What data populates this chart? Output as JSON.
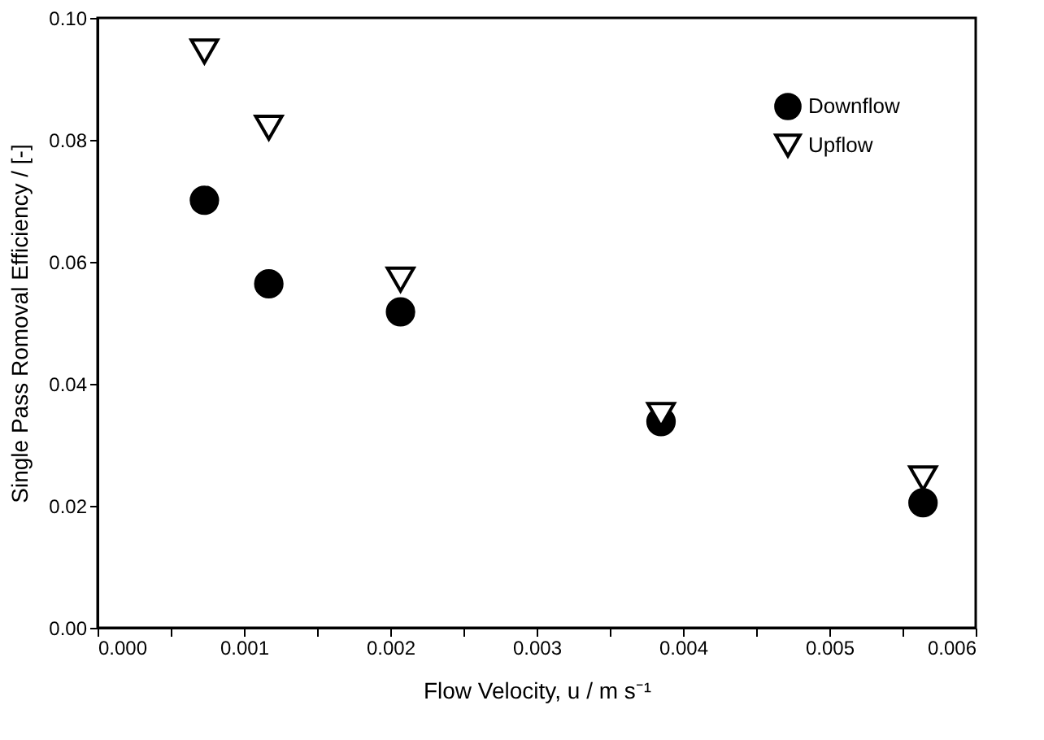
{
  "chart_data": {
    "type": "scatter",
    "xlabel": "Flow Velocity, u / m s⁻¹",
    "ylabel": "Single Pass Romoval Efficiency / [-]",
    "series": [
      {
        "name": "Downflow",
        "color": "#000000",
        "marker": "circle",
        "x": [
          0.00073,
          0.00117,
          0.00207,
          0.00385,
          0.00564
        ],
        "values": [
          0.0701,
          0.0564,
          0.0518,
          0.0338,
          0.0205
        ]
      },
      {
        "name": "Upflow",
        "color": "#000000",
        "marker": "triangle",
        "x": [
          0.00073,
          0.00117,
          0.00207,
          0.00385,
          0.00564
        ],
        "values": [
          0.0945,
          0.082,
          0.0571,
          0.0349,
          0.0245
        ]
      }
    ],
    "xlim": [
      0,
      0.006
    ],
    "xticks": [
      {
        "value": 0,
        "label": "0.000"
      },
      {
        "value": 0.0005,
        "label": null
      },
      {
        "value": 0.001,
        "label": "0.001"
      },
      {
        "value": 0.0015,
        "label": null
      },
      {
        "value": 0.002,
        "label": "0.002"
      },
      {
        "value": 0.0025,
        "label": null
      },
      {
        "value": 0.003,
        "label": "0.003"
      },
      {
        "value": 0.0035,
        "label": null
      },
      {
        "value": 0.004,
        "label": "0.004"
      },
      {
        "value": 0.0045,
        "label": null
      },
      {
        "value": 0.005,
        "label": "0.005"
      },
      {
        "value": 0.0055,
        "label": null
      },
      {
        "value": 0.006,
        "label": "0.006"
      }
    ],
    "ylim": [
      0,
      0.1
    ],
    "yticks": [
      {
        "value": 0,
        "label": "0.00"
      },
      {
        "value": 0.02,
        "label": "0.02"
      },
      {
        "value": 0.04,
        "label": "0.04"
      },
      {
        "value": 0.06,
        "label": "0.06"
      },
      {
        "value": 0.08,
        "label": "0.08"
      },
      {
        "value": 0.1,
        "label": "0.10"
      }
    ],
    "grid": false,
    "legend": "top right"
  }
}
